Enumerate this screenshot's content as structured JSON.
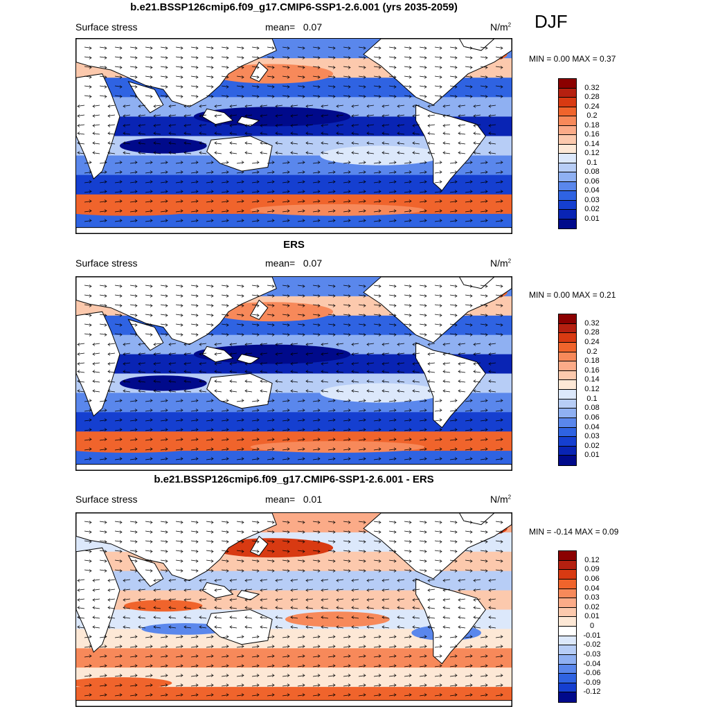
{
  "season": "DJF",
  "panels": [
    {
      "title": "b.e21.BSSP126cmip6.f09_g17.CMIP6-SSP1-2.6.001 (yrs 2035-2059)",
      "variable": "Surface stress",
      "mean_label": "mean=",
      "mean_value": "0.07",
      "units_base": "N/m",
      "units_exp": "2",
      "minmax": "MIN =   0.00 MAX =   0.37",
      "colorbar_labels": [
        "0.32",
        "0.28",
        "0.24",
        "0.2",
        "0.18",
        "0.16",
        "0.14",
        "0.12",
        "0.1",
        "0.08",
        "0.06",
        "0.04",
        "0.03",
        "0.02",
        "0.01"
      ],
      "colorbar_colors": [
        "#8b0000",
        "#b52010",
        "#d83a12",
        "#f0642c",
        "#f7895a",
        "#fbab88",
        "#fcc9ad",
        "#fde8d6",
        "#dce8fb",
        "#b7cdf6",
        "#8fb0f2",
        "#5a87ec",
        "#2f63e2",
        "#153fd0",
        "#0924b4",
        "#000a8b"
      ]
    },
    {
      "title": "ERS",
      "variable": "Surface stress",
      "mean_label": "mean=",
      "mean_value": "0.07",
      "units_base": "N/m",
      "units_exp": "2",
      "minmax": "MIN =   0.00 MAX =   0.21",
      "colorbar_labels": [
        "0.32",
        "0.28",
        "0.24",
        "0.2",
        "0.18",
        "0.16",
        "0.14",
        "0.12",
        "0.1",
        "0.08",
        "0.06",
        "0.04",
        "0.03",
        "0.02",
        "0.01"
      ],
      "colorbar_colors": [
        "#8b0000",
        "#b52010",
        "#d83a12",
        "#f0642c",
        "#f7895a",
        "#fbab88",
        "#fcc9ad",
        "#fde8d6",
        "#dce8fb",
        "#b7cdf6",
        "#8fb0f2",
        "#5a87ec",
        "#2f63e2",
        "#153fd0",
        "#0924b4",
        "#000a8b"
      ]
    },
    {
      "title": "b.e21.BSSP126cmip6.f09_g17.CMIP6-SSP1-2.6.001 - ERS",
      "variable": "Surface stress",
      "mean_label": "mean=",
      "mean_value": "0.01",
      "units_base": "N/m",
      "units_exp": "2",
      "minmax": "MIN =  -0.14 MAX =   0.09",
      "colorbar_labels": [
        "0.12",
        "0.09",
        "0.06",
        "0.04",
        "0.03",
        "0.02",
        "0.01",
        "0",
        "-0.01",
        "-0.02",
        "-0.03",
        "-0.04",
        "-0.06",
        "-0.09",
        "-0.12"
      ],
      "colorbar_colors": [
        "#8b0000",
        "#b52010",
        "#d83a12",
        "#f0642c",
        "#f7895a",
        "#fbab88",
        "#fcc9ad",
        "#fde8d6",
        "#ffffff",
        "#dce8fb",
        "#b7cdf6",
        "#8fb0f2",
        "#5a87ec",
        "#2f63e2",
        "#153fd0",
        "#000a8b"
      ]
    }
  ]
}
